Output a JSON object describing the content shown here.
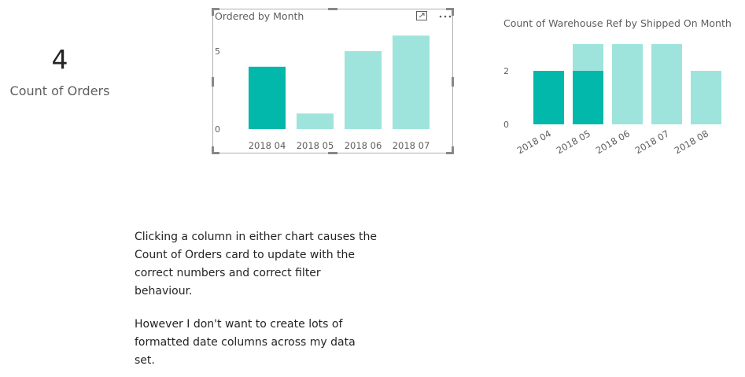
{
  "card": {
    "value": "4",
    "label": "Count of Orders"
  },
  "chart_data": [
    {
      "type": "bar",
      "title": "Ordered by Month",
      "categories": [
        "2018 04",
        "2018 05",
        "2018 06",
        "2018 07"
      ],
      "values": [
        4,
        1,
        5,
        6
      ],
      "selected_category": "2018 04",
      "yticks": [
        0,
        5
      ],
      "ylim": [
        0,
        6
      ],
      "colors": {
        "selected": "#01B8AA",
        "unselected": "#9EE4DD"
      }
    },
    {
      "type": "bar",
      "title": "Count of Warehouse Ref by Shipped On Month",
      "categories": [
        "2018 04",
        "2018 05",
        "2018 06",
        "2018 07",
        "2018 08"
      ],
      "values": [
        2,
        3,
        3,
        3,
        2
      ],
      "highlighted_values": [
        2,
        2,
        0,
        0,
        0
      ],
      "yticks": [
        0,
        2
      ],
      "ylim": [
        0,
        3
      ],
      "colors": {
        "selected": "#01B8AA",
        "unselected": "#9EE4DD"
      }
    }
  ],
  "chart1_header": {
    "focus_mode_icon": "focus-mode-icon",
    "more_options_icon": "more-options-icon"
  },
  "notes": {
    "paragraph1": [
      "Clicking a column in either chart causes the",
      "Count of Orders card to update with the",
      "correct numbers and correct filter",
      "behaviour."
    ],
    "paragraph2": [
      "However I don't want to create lots of",
      "formatted date columns across my data",
      "set."
    ]
  }
}
